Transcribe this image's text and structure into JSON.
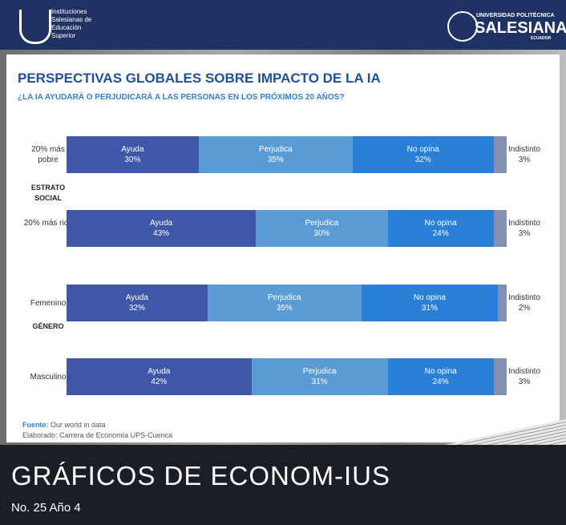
{
  "header": {
    "left_logo": "Instituciones Salesianas de Educación Superior",
    "right_logo_top": "UNIVERSIDAD POLITÉCNICA",
    "right_logo_main": "SALESIANA",
    "right_logo_bottom": "ECUADOR"
  },
  "chart_data": {
    "type": "stacked_bar_horizontal",
    "title": "PERSPECTIVAS GLOBALES SOBRE IMPACTO DE LA IA",
    "subtitle": "¿LA IA AYUDARÁ O PERJUDICARÁ A LAS PERSONAS EN LOS PRÓXIMOS 20 AÑOS?",
    "categories": [
      "20% más pobre",
      "20% más rico",
      "Femenino",
      "Masculino"
    ],
    "groups": [
      "ESTRATO SOCIAL",
      "GÉNERO"
    ],
    "xlim": [
      0,
      100
    ],
    "series": [
      {
        "name": "Ayuda",
        "color": "#3f57a8",
        "values": [
          30,
          43,
          32,
          42
        ],
        "value_labels": [
          "30%",
          "43%",
          "32%",
          "42%"
        ]
      },
      {
        "name": "Perjudica",
        "color": "#5b9bd5",
        "values": [
          35,
          30,
          35,
          31
        ],
        "value_labels": [
          "35%",
          "30%",
          "35%",
          "31%"
        ]
      },
      {
        "name": "No opina",
        "color": "#2a7fd8",
        "values": [
          32,
          24,
          31,
          24
        ],
        "value_labels": [
          "32%",
          "24%",
          "31%",
          "24%"
        ]
      },
      {
        "name": "Indistinto",
        "color": "#8190b3",
        "values": [
          3,
          3,
          2,
          3
        ],
        "value_labels": [
          "3%",
          "3%",
          "2%",
          "3%"
        ]
      }
    ],
    "source_label": "Fuente:",
    "source": "Our world in data",
    "credit_label": "Elaborado:",
    "credit": "Carrera de Economía UPS-Cuenca"
  },
  "footer": {
    "title": "GRÁFICOS DE ECONOM-IUS",
    "issue": "No. 25 Año 4"
  }
}
